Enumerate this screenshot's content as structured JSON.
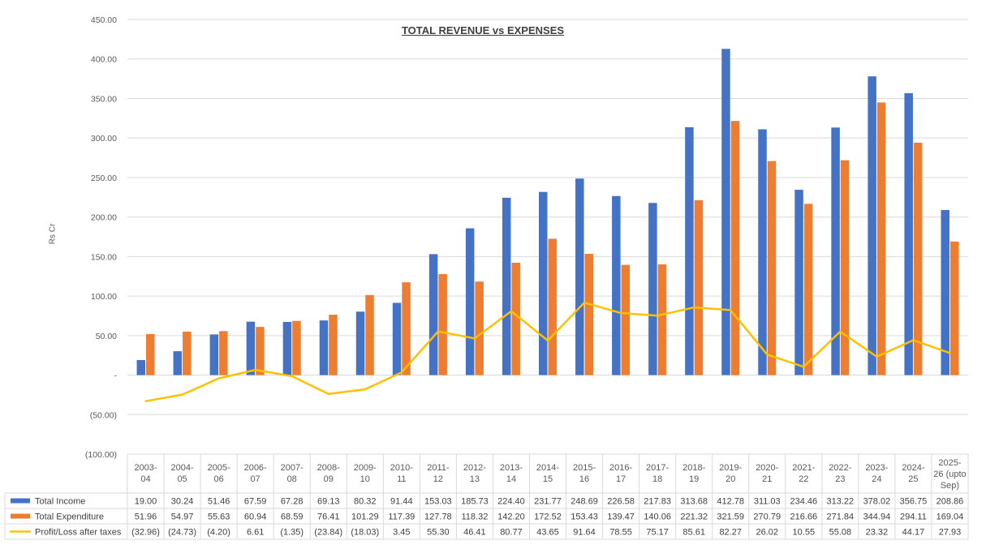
{
  "chart_data": {
    "type": "bar",
    "title": "TOTAL REVENUE vs EXPENSES",
    "ylabel": "Rs Cr",
    "xlabel": "",
    "ylim": [
      -100,
      450
    ],
    "y_ticks": [
      {
        "v": 450,
        "label": "450.00"
      },
      {
        "v": 400,
        "label": "400.00"
      },
      {
        "v": 350,
        "label": "350.00"
      },
      {
        "v": 300,
        "label": "300.00"
      },
      {
        "v": 250,
        "label": "250.00"
      },
      {
        "v": 200,
        "label": "200.00"
      },
      {
        "v": 150,
        "label": "150.00"
      },
      {
        "v": 100,
        "label": "100.00"
      },
      {
        "v": 50,
        "label": "50.00"
      },
      {
        "v": 0,
        "label": "-"
      },
      {
        "v": -50,
        "label": "(50.00)"
      },
      {
        "v": -100,
        "label": "(100.00)"
      }
    ],
    "categories": [
      [
        "2003-",
        "04"
      ],
      [
        "2004-",
        "05"
      ],
      [
        "2005-",
        "06"
      ],
      [
        "2006-",
        "07"
      ],
      [
        "2007-",
        "08"
      ],
      [
        "2008-",
        "09"
      ],
      [
        "2009-",
        "10"
      ],
      [
        "2010-",
        "11"
      ],
      [
        "2011-",
        "12"
      ],
      [
        "2012-",
        "13"
      ],
      [
        "2013-",
        "14"
      ],
      [
        "2014-",
        "15"
      ],
      [
        "2015-",
        "16"
      ],
      [
        "2016-",
        "17"
      ],
      [
        "2017-",
        "18"
      ],
      [
        "2018-",
        "19"
      ],
      [
        "2019-",
        "20"
      ],
      [
        "2020-",
        "21"
      ],
      [
        "2021-",
        "22"
      ],
      [
        "2022-",
        "23"
      ],
      [
        "2023-",
        "24"
      ],
      [
        "2024-",
        "25"
      ],
      [
        "2025-",
        "26 (upto",
        "Sep)"
      ]
    ],
    "series": [
      {
        "name": "Total Income",
        "kind": "bar",
        "color": "#4472C4",
        "values": [
          19.0,
          30.24,
          51.46,
          67.59,
          67.28,
          69.13,
          80.32,
          91.44,
          153.03,
          185.73,
          224.4,
          231.77,
          248.69,
          226.58,
          217.83,
          313.68,
          412.78,
          311.03,
          234.46,
          313.22,
          378.02,
          356.75,
          208.86
        ],
        "labels": [
          "19.00",
          "30.24",
          "51.46",
          "67.59",
          "67.28",
          "69.13",
          "80.32",
          "91.44",
          "153.03",
          "185.73",
          "224.40",
          "231.77",
          "248.69",
          "226.58",
          "217.83",
          "313.68",
          "412.78",
          "311.03",
          "234.46",
          "313.22",
          "378.02",
          "356.75",
          "208.86"
        ]
      },
      {
        "name": "Total Expenditure",
        "kind": "bar",
        "color": "#ED7D31",
        "values": [
          51.96,
          54.97,
          55.63,
          60.94,
          68.59,
          76.41,
          101.29,
          117.39,
          127.78,
          118.32,
          142.2,
          172.52,
          153.43,
          139.47,
          140.06,
          221.32,
          321.59,
          270.79,
          216.66,
          271.84,
          344.94,
          294.11,
          169.04
        ],
        "labels": [
          "51.96",
          "54.97",
          "55.63",
          "60.94",
          "68.59",
          "76.41",
          "101.29",
          "117.39",
          "127.78",
          "118.32",
          "142.20",
          "172.52",
          "153.43",
          "139.47",
          "140.06",
          "221.32",
          "321.59",
          "270.79",
          "216.66",
          "271.84",
          "344.94",
          "294.11",
          "169.04"
        ]
      },
      {
        "name": "Profit/Loss after taxes",
        "kind": "line",
        "color": "#FFC000",
        "values": [
          -32.96,
          -24.73,
          -4.2,
          6.61,
          -1.35,
          -23.84,
          -18.03,
          3.45,
          55.3,
          46.41,
          80.77,
          43.65,
          91.64,
          78.55,
          75.17,
          85.61,
          82.27,
          26.02,
          10.55,
          55.08,
          23.32,
          44.17,
          27.93
        ],
        "labels": [
          "(32.96)",
          "(24.73)",
          "(4.20)",
          "6.61",
          "(1.35)",
          "(23.84)",
          "(18.03)",
          "3.45",
          "55.30",
          "46.41",
          "80.77",
          "43.65",
          "91.64",
          "78.55",
          "75.17",
          "85.61",
          "82.27",
          "26.02",
          "10.55",
          "55.08",
          "23.32",
          "44.17",
          "27.93"
        ]
      }
    ]
  }
}
